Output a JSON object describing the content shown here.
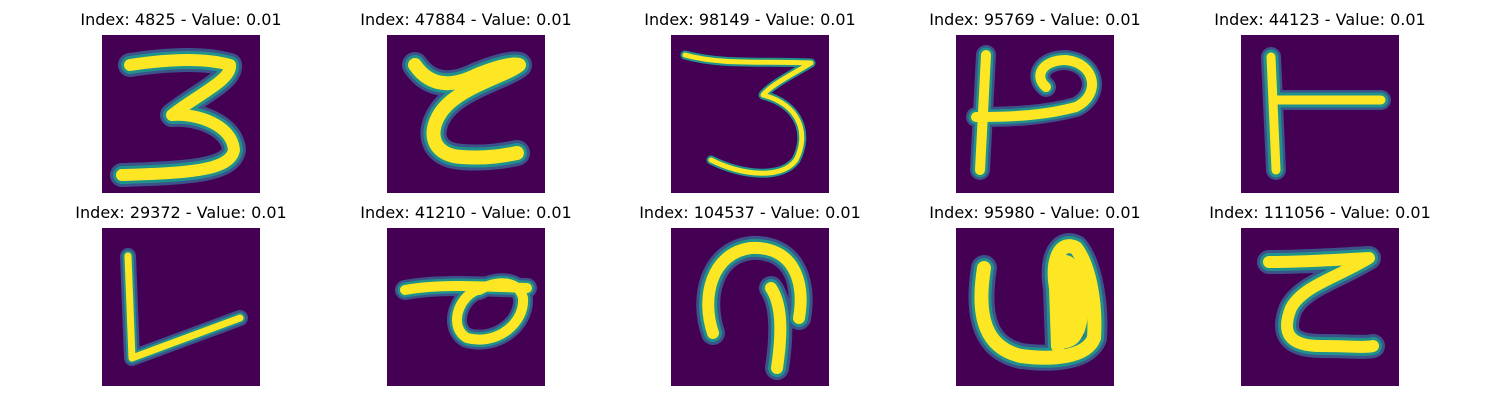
{
  "colors": {
    "background": "#440154",
    "stroke_core": "#fde725",
    "stroke_edge": "#21918c",
    "stroke_halo": "#3b528b"
  },
  "panels": [
    {
      "title": "Index: 4825 - Value: 0.01",
      "glyph": "3"
    },
    {
      "title": "Index: 47884 - Value: 0.01",
      "glyph": "curly-c"
    },
    {
      "title": "Index: 98149 - Value: 0.01",
      "glyph": "3-thin"
    },
    {
      "title": "Index: 95769 - Value: 0.01",
      "glyph": "p-rotated"
    },
    {
      "title": "Index: 44123 - Value: 0.01",
      "glyph": "t-sideways"
    },
    {
      "title": "Index: 29372 - Value: 0.01",
      "glyph": "L"
    },
    {
      "title": "Index: 41210 - Value: 0.01",
      "glyph": "d-sideways"
    },
    {
      "title": "Index: 104537 - Value: 0.01",
      "glyph": "hook"
    },
    {
      "title": "Index: 95980 - Value: 0.01",
      "glyph": "U-filled"
    },
    {
      "title": "Index: 111056 - Value: 0.01",
      "glyph": "z-curly"
    }
  ]
}
